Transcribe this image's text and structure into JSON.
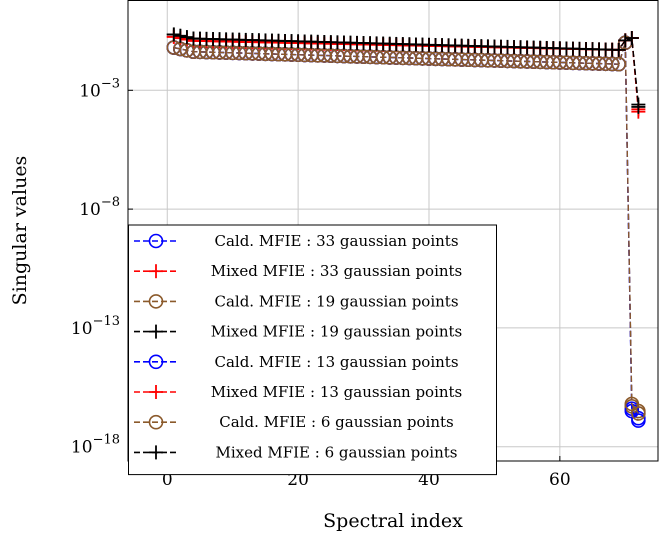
{
  "chart_data": {
    "type": "line",
    "xlabel": "Spectral index",
    "ylabel": "Singular values",
    "xlim": [
      -6,
      75
    ],
    "ylim_log10": [
      -18.6,
      0.8
    ],
    "y_scale": "log",
    "x_ticks": [
      0,
      20,
      40,
      60
    ],
    "y_ticks": [
      {
        "exp": -3,
        "label": "10",
        "sup": "−3"
      },
      {
        "exp": -8,
        "label": "10",
        "sup": "−8"
      },
      {
        "exp": -13,
        "label": "10",
        "sup": "−13"
      },
      {
        "exp": -18,
        "label": "10",
        "sup": "−18"
      }
    ],
    "grid": true,
    "legend_position": "bottom-left",
    "series": [
      {
        "name": "Cald. MFIE : 33 gaussian points",
        "color": "#0000ff",
        "marker": "circle",
        "x_end": 71,
        "tail": [
          [
            70,
            -1.0
          ],
          [
            71,
            -16.4
          ],
          [
            72,
            -16.8
          ]
        ],
        "y_start": -1.35,
        "y_plateau_end": -1.9
      },
      {
        "name": "Mixed MFIE : 33 gaussian points",
        "color": "#ff0000",
        "marker": "plus",
        "x_end": 72,
        "tail": [
          [
            70,
            -0.9
          ],
          [
            71,
            -0.8
          ],
          [
            72,
            -3.9
          ]
        ],
        "y_start": -0.9,
        "y_plateau_end": -1.3
      },
      {
        "name": "Cald. MFIE : 19 gaussian points",
        "color": "#8b5a2b",
        "marker": "circle",
        "x_end": 71,
        "tail": [
          [
            70,
            -1.0
          ],
          [
            71,
            -16.3
          ],
          [
            72,
            -16.5
          ]
        ],
        "y_start": -1.35,
        "y_plateau_end": -1.9
      },
      {
        "name": "Mixed MFIE : 19 gaussian points",
        "color": "#000000",
        "marker": "plus",
        "x_end": 72,
        "tail": [
          [
            70,
            -0.9
          ],
          [
            71,
            -0.8
          ],
          [
            72,
            -3.6
          ]
        ],
        "y_start": -0.8,
        "y_plateau_end": -1.3
      },
      {
        "name": "Cald. MFIE : 13 gaussian points",
        "color": "#0000ff",
        "marker": "circle",
        "x_end": 71,
        "tail": [
          [
            70,
            -1.0
          ],
          [
            71,
            -16.5
          ],
          [
            72,
            -16.9
          ]
        ],
        "y_start": -1.35,
        "y_plateau_end": -1.9
      },
      {
        "name": "Mixed MFIE : 13 gaussian points",
        "color": "#ff0000",
        "marker": "plus",
        "x_end": 72,
        "tail": [
          [
            70,
            -0.9
          ],
          [
            71,
            -0.8
          ],
          [
            72,
            -3.8
          ]
        ],
        "y_start": -0.9,
        "y_plateau_end": -1.3
      },
      {
        "name": "Cald. MFIE : 6 gaussian points",
        "color": "#8b5a2b",
        "marker": "circle",
        "x_end": 71,
        "tail": [
          [
            70,
            -1.0
          ],
          [
            71,
            -16.2
          ],
          [
            72,
            -16.6
          ]
        ],
        "y_start": -1.35,
        "y_plateau_end": -1.9
      },
      {
        "name": "Mixed MFIE : 6 gaussian points",
        "color": "#000000",
        "marker": "plus",
        "x_end": 72,
        "tail": [
          [
            70,
            -0.9
          ],
          [
            71,
            -0.8
          ],
          [
            72,
            -3.7
          ]
        ],
        "y_start": -0.8,
        "y_plateau_end": -1.3
      }
    ]
  }
}
